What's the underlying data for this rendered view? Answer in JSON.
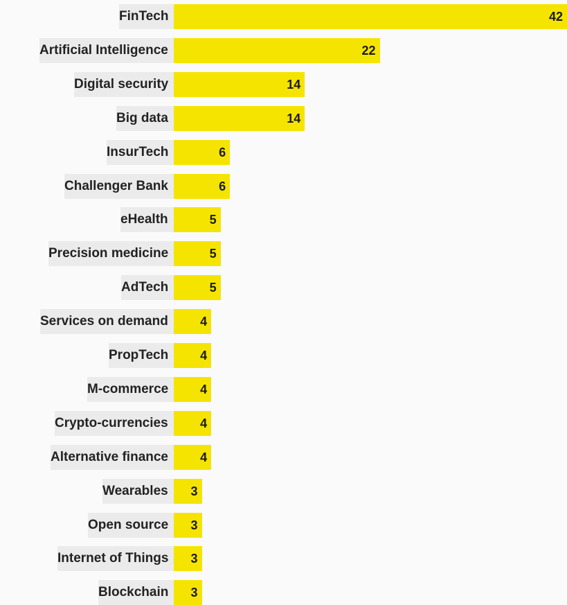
{
  "chart_data": {
    "type": "bar",
    "orientation": "horizontal",
    "categories": [
      "FinTech",
      "Artificial Intelligence",
      "Digital security",
      "Big data",
      "InsurTech",
      "Challenger Bank",
      "eHealth",
      "Precision medicine",
      "AdTech",
      "Services on demand",
      "PropTech",
      "M-commerce",
      "Crypto-currencies",
      "Alternative finance",
      "Wearables",
      "Open source",
      "Internet of Things",
      "Blockchain"
    ],
    "values": [
      42,
      22,
      14,
      14,
      6,
      6,
      5,
      5,
      5,
      4,
      4,
      4,
      4,
      4,
      3,
      3,
      3,
      3
    ],
    "value_labels": [
      "42",
      "22",
      "14",
      "14",
      "6",
      "6",
      "5",
      "5",
      "5",
      "4",
      "4",
      "4",
      "4",
      "4",
      "3",
      "3",
      "3",
      "3"
    ],
    "xlim": [
      0,
      42
    ],
    "grid": false,
    "legend": "none",
    "colors": {
      "bar": "#f5e400",
      "label_background": "#ebebeb",
      "text": "#222222",
      "background": "#fafafa"
    }
  }
}
